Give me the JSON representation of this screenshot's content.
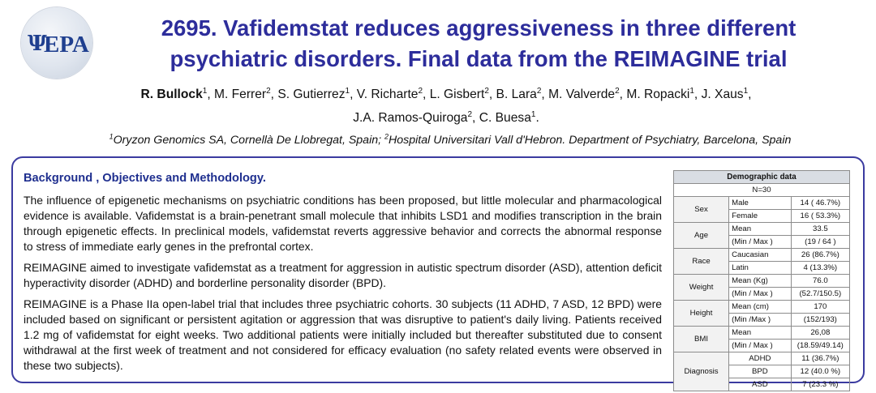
{
  "logo": {
    "text": "EPA",
    "symbol": "Ψ"
  },
  "title": {
    "line1": "2695. Vafidemstat reduces aggressiveness in three different",
    "line2": "psychiatric disorders. Final data from the REIMAGINE trial"
  },
  "authors": [
    {
      "name": "R. Bullock",
      "sup": "1",
      "bold": true
    },
    {
      "name": "M. Ferrer",
      "sup": "2"
    },
    {
      "name": "S. Gutierrez",
      "sup": "1"
    },
    {
      "name": "V. Richarte",
      "sup": "2"
    },
    {
      "name": "L. Gisbert",
      "sup": "2"
    },
    {
      "name": "B. Lara",
      "sup": "2"
    },
    {
      "name": "M. Valverde",
      "sup": "2"
    },
    {
      "name": "M. Ropacki",
      "sup": "1"
    },
    {
      "name": "J. Xaus",
      "sup": "1"
    },
    {
      "name": "J.A. Ramos-Quiroga",
      "sup": "2"
    },
    {
      "name": "C. Buesa",
      "sup": "1"
    }
  ],
  "affiliation": {
    "sup1": "1",
    "text1": "Oryzon Genomics SA,  Cornellà De Llobregat, Spain; ",
    "sup2": "2",
    "text2": "Hospital Universitari Vall d'Hebron. Department of Psychiatry, Barcelona, Spain"
  },
  "section": {
    "title": "Background , Objectives and Methodology.",
    "paragraphs": [
      "The influence of epigenetic mechanisms on psychiatric conditions has been proposed, but little molecular and pharmacological evidence is available. Vafidemstat is a brain-penetrant small molecule that inhibits LSD1 and modifies transcription in the brain through epigenetic effects. In preclinical models, vafidemstat reverts aggressive behavior and corrects the abnormal response to stress of immediate early genes in the prefrontal cortex.",
      "REIMAGINE aimed to investigate vafidemstat as a treatment for aggression in autistic spectrum disorder (ASD), attention deficit hyperactivity disorder (ADHD) and borderline personality disorder (BPD).",
      "REIMAGINE is a Phase IIa open-label trial that includes three psychiatric cohorts. 30 subjects (11 ADHD, 7 ASD, 12 BPD) were included based on significant or persistent agitation or aggression that was disruptive to patient's daily living. Patients received 1.2 mg of vafidemstat for eight weeks. Two additional patients were initially included but thereafter substituted due to consent withdrawal at the first week of treatment and not considered for efficacy evaluation (no safety related events were observed in these two subjects)."
    ]
  },
  "demographics": {
    "header": "Demographic data",
    "n": "N=30",
    "groups": [
      {
        "category": "Sex",
        "rows": [
          {
            "label": "Male",
            "value": "14 ( 46.7%)"
          },
          {
            "label": "Female",
            "value": "16 ( 53.3%)"
          }
        ]
      },
      {
        "category": "Age",
        "rows": [
          {
            "label": "Mean",
            "value": "33.5"
          },
          {
            "label": "(Min / Max )",
            "value": "(19 / 64 )"
          }
        ]
      },
      {
        "category": "Race",
        "rows": [
          {
            "label": "Caucasian",
            "value": "26 (86.7%)"
          },
          {
            "label": "Latin",
            "value": "4 (13.3%)"
          }
        ]
      },
      {
        "category": "Weight",
        "rows": [
          {
            "label": "Mean (Kg)",
            "value": "76.0"
          },
          {
            "label": "(Min / Max )",
            "value": "(52.7/150.5)"
          }
        ]
      },
      {
        "category": "Height",
        "rows": [
          {
            "label": "Mean (cm)",
            "value": "170"
          },
          {
            "label": "(Min /Max )",
            "value": "(152/193)"
          }
        ]
      },
      {
        "category": "BMI",
        "rows": [
          {
            "label": "Mean",
            "value": "26,08"
          },
          {
            "label": "(Min / Max )",
            "value": "(18.59/49.14)"
          }
        ]
      },
      {
        "category": "Diagnosis",
        "rows": [
          {
            "label": "ADHD",
            "value": "11 (36.7%)"
          },
          {
            "label": "BPD",
            "value": "12 (40.0 %)"
          },
          {
            "label": "ASD",
            "value": "7 (23.3 %)"
          }
        ]
      }
    ]
  }
}
